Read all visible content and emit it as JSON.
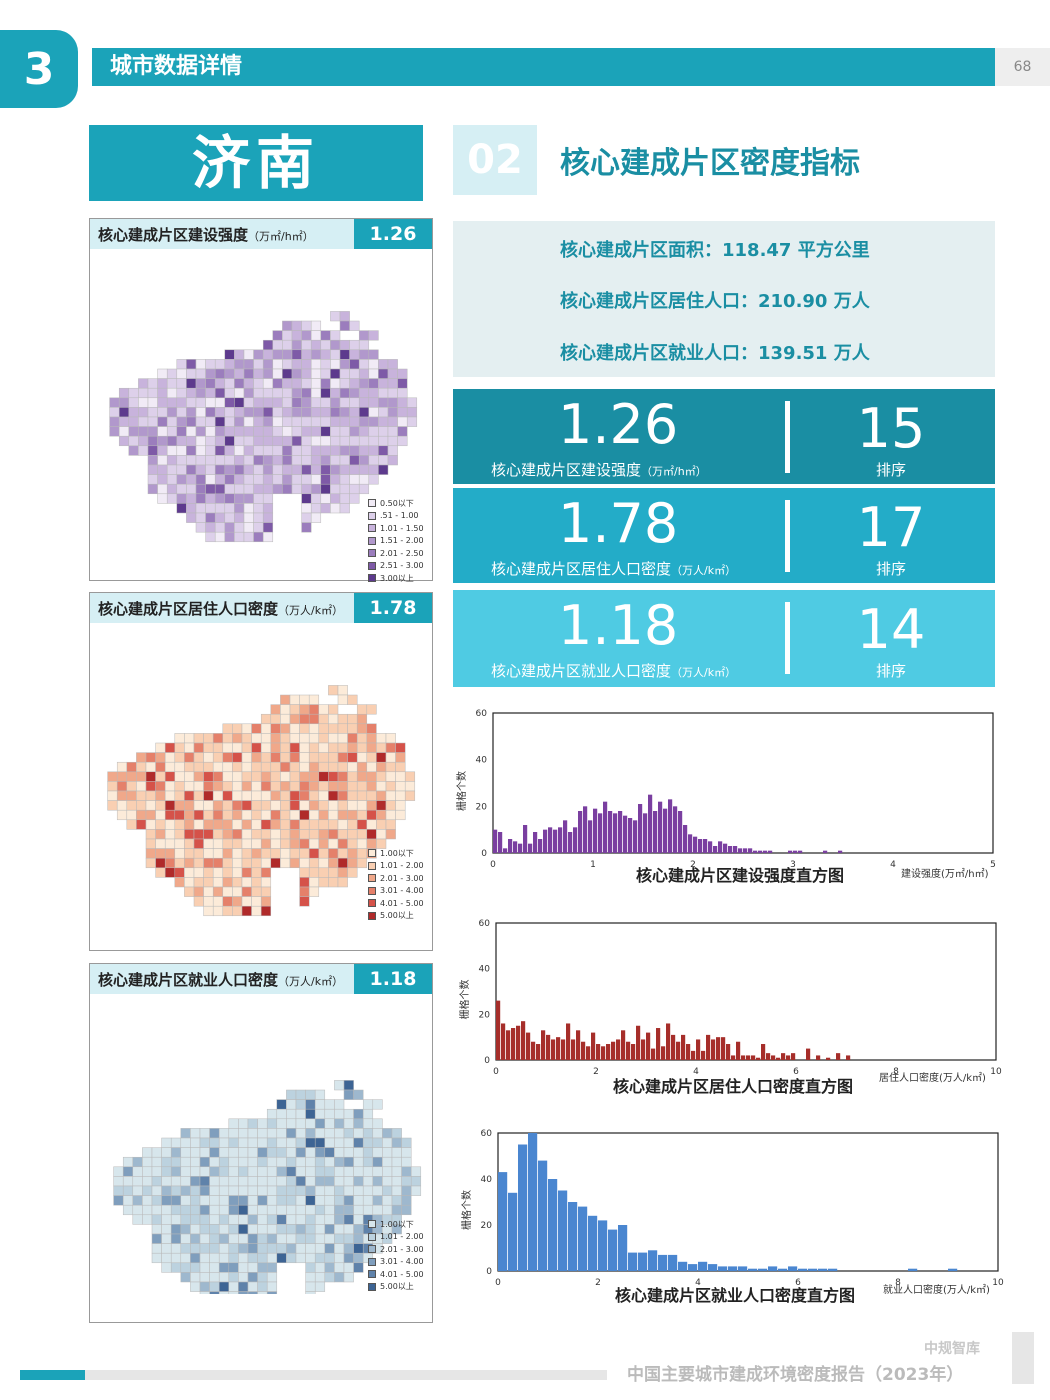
{
  "header": {
    "section_number": "3",
    "section_title": "城市数据详情",
    "page_number": "68"
  },
  "city": "济南",
  "indicators": {
    "number": "02",
    "title": "核心建成片区密度指标",
    "info": [
      "核心建成片区面积：118.47 平方公里",
      "核心建成片区居住人口：210.90 万人",
      "核心建成片区就业人口：139.51 万人"
    ],
    "metrics": [
      {
        "value": "1.26",
        "label": "核心建成片区建设强度",
        "unit": "（万㎡/h㎡）",
        "rank": "15",
        "rank_label": "排序",
        "color": "#1a8ea3"
      },
      {
        "value": "1.78",
        "label": "核心建成片区居住人口密度",
        "unit": "（万人/k㎡）",
        "rank": "17",
        "rank_label": "排序",
        "color": "#23acc8"
      },
      {
        "value": "1.18",
        "label": "核心建成片区就业人口密度",
        "unit": "（万人/k㎡）",
        "rank": "14",
        "rank_label": "排序",
        "color": "#4fcbe3"
      }
    ]
  },
  "maps": [
    {
      "title": "核心建成片区建设强度",
      "unit": "（万㎡/h㎡）",
      "value": "1.26",
      "legend": [
        "0.50以下",
        ".51 - 1.00",
        "1.01 - 1.50",
        "1.51 - 2.00",
        "2.01 - 2.50",
        "2.51 - 3.00",
        "3.00以上"
      ],
      "colors": [
        "#f1ebf6",
        "#ddd0ea",
        "#c8b3dc",
        "#b198cc",
        "#9b7dbd",
        "#7e5aa7",
        "#5d3a8d"
      ]
    },
    {
      "title": "核心建成片区居住人口密度",
      "unit": "（万人/k㎡）",
      "value": "1.78",
      "legend": [
        "1.00以下",
        "1.01 - 2.00",
        "2.01 - 3.00",
        "3.01 - 4.00",
        "4.01 - 5.00",
        "5.00以上"
      ],
      "colors": [
        "#fcebd9",
        "#f9cfb2",
        "#f0a88a",
        "#e5806a",
        "#d55249",
        "#b02a2a"
      ]
    },
    {
      "title": "核心建成片区就业人口密度",
      "unit": "（万人/k㎡）",
      "value": "1.18",
      "legend": [
        "1.00以下",
        "1.01 - 2.00",
        "2.01 - 3.00",
        "3.01 - 4.00",
        "4.01 - 5.00",
        "5.00以上"
      ],
      "colors": [
        "#d7e6ec",
        "#bcd2df",
        "#9eb8ce",
        "#7f9ebd",
        "#5f82aa",
        "#3d6494"
      ]
    }
  ],
  "chart_data": [
    {
      "type": "bar",
      "title": "核心建成片区建设强度直方图",
      "xlabel": "建设强度(万㎡/h㎡)",
      "ylabel": "栅格个数",
      "xlim": [
        0,
        5
      ],
      "ylim": [
        0,
        60
      ],
      "xticks": [
        0,
        1,
        2,
        3,
        4,
        5
      ],
      "yticks": [
        0,
        20,
        40,
        60
      ],
      "bin_width": 0.05,
      "color": "#7a3fa0",
      "values": [
        10,
        9,
        2,
        6,
        5,
        4,
        12,
        4,
        9,
        6,
        10,
        11,
        10,
        11,
        14,
        9,
        11,
        18,
        20,
        14,
        19,
        17,
        22,
        18,
        17,
        18,
        16,
        15,
        14,
        21,
        17,
        25,
        18,
        22,
        19,
        23,
        20,
        18,
        12,
        8,
        7,
        6,
        6,
        5,
        3,
        5,
        4,
        3,
        3,
        2,
        2,
        2,
        1,
        1,
        1,
        1,
        0,
        0,
        0,
        1,
        1,
        1,
        0,
        0,
        0,
        0,
        1,
        0,
        0,
        1,
        0,
        0,
        0,
        0,
        0,
        0,
        0,
        0,
        0,
        0,
        0,
        0,
        0,
        0,
        0,
        0,
        0,
        0,
        0,
        0,
        0,
        0,
        0,
        0,
        0,
        0,
        0,
        0,
        0,
        0
      ]
    },
    {
      "type": "bar",
      "title": "核心建成片区居住人口密度直方图",
      "xlabel": "居住人口密度(万人/k㎡)",
      "ylabel": "栅格个数",
      "xlim": [
        0,
        10
      ],
      "ylim": [
        0,
        60
      ],
      "xticks": [
        0,
        2,
        4,
        6,
        8,
        10
      ],
      "yticks": [
        0,
        20,
        40,
        60
      ],
      "bin_width": 0.1,
      "color": "#a62e2a",
      "values": [
        26,
        16,
        13,
        14,
        15,
        17,
        12,
        8,
        7,
        13,
        11,
        9,
        10,
        9,
        16,
        9,
        13,
        8,
        6,
        12,
        7,
        6,
        7,
        8,
        9,
        13,
        8,
        7,
        15,
        9,
        12,
        5,
        14,
        6,
        16,
        11,
        8,
        11,
        7,
        4,
        9,
        4,
        11,
        9,
        10,
        10,
        7,
        2,
        8,
        2,
        2,
        2,
        1,
        7,
        3,
        2,
        1,
        3,
        2,
        3,
        0,
        0,
        5,
        0,
        2,
        0,
        1,
        0,
        3,
        0,
        2,
        0,
        0,
        0,
        0,
        0,
        0,
        0,
        0,
        0,
        0,
        0,
        0,
        0,
        0,
        0,
        0,
        0,
        0,
        0,
        0,
        0,
        0,
        0,
        0,
        0,
        0,
        0,
        0,
        0
      ]
    },
    {
      "type": "bar",
      "title": "核心建成片区就业人口密度直方图",
      "xlabel": "就业人口密度(万人/k㎡)",
      "ylabel": "栅格个数",
      "xlim": [
        0,
        10
      ],
      "ylim": [
        0,
        60
      ],
      "xticks": [
        0,
        2,
        4,
        6,
        8,
        10
      ],
      "yticks": [
        0,
        20,
        40,
        60
      ],
      "bin_width": 0.2,
      "color": "#4a86d0",
      "values": [
        43,
        34,
        55,
        60,
        48,
        40,
        35,
        30,
        28,
        24,
        22,
        18,
        20,
        8,
        8,
        9,
        7,
        7,
        4,
        3,
        4,
        3,
        2,
        2,
        2,
        1,
        1,
        2,
        1,
        2,
        1,
        1,
        1,
        1,
        0,
        0,
        0,
        0,
        0,
        0,
        0,
        1,
        0,
        0,
        0,
        1,
        0,
        0,
        0,
        0
      ]
    }
  ],
  "footer": {
    "brand": "中规智库",
    "report": "中国主要城市建成环境密度报告（2023年）"
  }
}
